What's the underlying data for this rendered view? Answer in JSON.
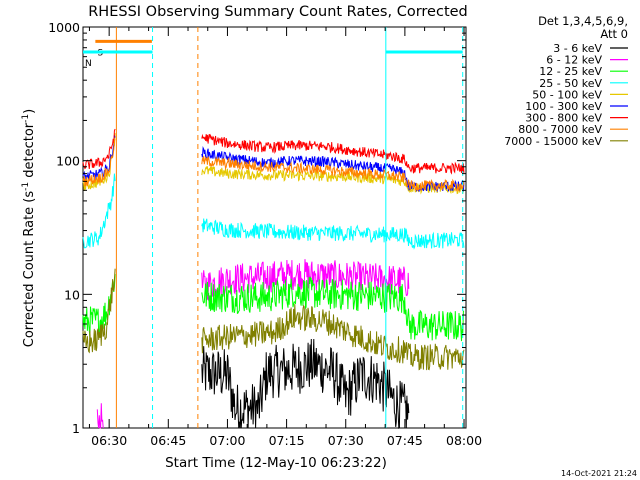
{
  "chart_data": {
    "type": "line",
    "title": "RHESSI Observing Summary Count Rates, Corrected",
    "xlabel": "Start Time (12-May-10 06:23:22)",
    "ylabel_main": "Corrected Count Rate (s",
    "ylabel_sup1": "-1",
    "ylabel_mid": " detector",
    "ylabel_sup2": "-1",
    "ylabel_end": ")",
    "x_scale": "time",
    "y_scale": "log",
    "xlim": [
      "06:23:22",
      "08:00:30"
    ],
    "ylim": [
      1,
      1000
    ],
    "xticks": [
      "06:30",
      "06:45",
      "07:00",
      "07:15",
      "07:30",
      "07:45",
      "08:00"
    ],
    "yticks": [
      "1",
      "10",
      "100",
      "1000"
    ],
    "grid": false,
    "legend": {
      "placement": "right",
      "header_line1": "Det 1,3,4,5,6,9,",
      "header_line2": "Att 0",
      "entries": [
        {
          "label": "3 - 6 keV",
          "color": "#000000"
        },
        {
          "label": "6 - 12 keV",
          "color": "#ff00ff"
        },
        {
          "label": "12 - 25 keV",
          "color": "#00ff00"
        },
        {
          "label": "25 - 50 keV",
          "color": "#00ffff"
        },
        {
          "label": "50 - 100 keV",
          "color": "#e6c800"
        },
        {
          "label": "100 - 300 keV",
          "color": "#0000ff"
        },
        {
          "label": "300 - 800 keV",
          "color": "#ff0000"
        },
        {
          "label": "800 - 7000 keV",
          "color": "#ff8000"
        },
        {
          "label": "7000 - 15000 keV",
          "color": "#808000"
        }
      ]
    },
    "bars": [
      {
        "name": "S",
        "label": "S",
        "color": "#ff8000",
        "x_start": "06:26:30",
        "x_end": "06:40:50",
        "y": 780
      },
      {
        "name": "N",
        "label": "N",
        "color": "#00ffff",
        "x_start": "06:23:22",
        "x_end": "06:41:00",
        "y": 650
      },
      {
        "name": "N2",
        "label": "",
        "color": "#00ffff",
        "x_start": "07:40:10",
        "x_end": "07:59:40",
        "y": 650
      }
    ],
    "vlines": [
      {
        "x": "06:31:50",
        "color": "#ff8000",
        "style": "solid"
      },
      {
        "x": "06:41:00",
        "color": "#00ffff",
        "style": "dashed"
      },
      {
        "x": "06:52:30",
        "color": "#ff8000",
        "style": "dashed"
      },
      {
        "x": "07:40:10",
        "color": "#00ffff",
        "style": "solid"
      },
      {
        "x": "07:59:40",
        "color": "#00ffff",
        "style": "dashed"
      }
    ],
    "series": [
      {
        "name": "3 - 6 keV",
        "color": "#000000",
        "noise": 0.2,
        "segments": [
          [
            [
              "06:53:30",
              2.6
            ],
            [
              "07:00:00",
              2.5
            ],
            [
              "07:02:00",
              1.4
            ],
            [
              "07:08:00",
              1.4
            ],
            [
              "07:10:00",
              2.6
            ],
            [
              "07:15:00",
              2.7
            ],
            [
              "07:22:00",
              3.0
            ],
            [
              "07:27:00",
              2.6
            ],
            [
              "07:30:00",
              1.7
            ],
            [
              "07:34:00",
              2.5
            ],
            [
              "07:38:00",
              2.3
            ],
            [
              "07:43:00",
              1.5
            ],
            [
              "07:46:00",
              1.3
            ]
          ]
        ]
      },
      {
        "name": "6 - 12 keV",
        "color": "#ff00ff",
        "noise": 0.12,
        "segments": [
          [
            [
              "06:27:00",
              1.1
            ],
            [
              "06:28:30",
              1.2
            ]
          ],
          [
            [
              "06:53:30",
              11.5
            ],
            [
              "07:00:00",
              13.0
            ],
            [
              "07:10:00",
              13.5
            ],
            [
              "07:17:00",
              14.2
            ],
            [
              "07:25:00",
              13.8
            ],
            [
              "07:35:00",
              13.2
            ],
            [
              "07:42:00",
              12.8
            ],
            [
              "07:46:00",
              12.3
            ]
          ]
        ]
      },
      {
        "name": "12 - 25 keV",
        "color": "#00ff00",
        "noise": 0.12,
        "segments": [
          [
            [
              "06:23:22",
              6.2
            ],
            [
              "06:27:30",
              6.3
            ],
            [
              "06:29:30",
              7.5
            ],
            [
              "06:30:30",
              10.5
            ],
            [
              "06:31:30",
              13.5
            ]
          ],
          [
            [
              "06:53:30",
              9.8
            ],
            [
              "07:00:00",
              9.5
            ],
            [
              "07:10:00",
              9.5
            ],
            [
              "07:17:00",
              10.5
            ],
            [
              "07:25:00",
              10.0
            ],
            [
              "07:35:00",
              9.8
            ],
            [
              "07:45:00",
              9.4
            ],
            [
              "07:46:00",
              5.8
            ],
            [
              "08:00:00",
              5.8
            ]
          ]
        ]
      },
      {
        "name": "25 - 50 keV",
        "color": "#00ffff",
        "noise": 0.06,
        "segments": [
          [
            [
              "06:23:22",
              25.0
            ],
            [
              "06:27:30",
              26.5
            ],
            [
              "06:30:30",
              50.0
            ],
            [
              "06:31:30",
              75.0
            ]
          ],
          [
            [
              "06:53:30",
              33.0
            ],
            [
              "07:00:00",
              30.5
            ],
            [
              "07:10:00",
              29.5
            ],
            [
              "07:17:00",
              29.0
            ],
            [
              "07:30:00",
              28.5
            ],
            [
              "07:42:00",
              28.0
            ],
            [
              "07:45:00",
              28.0
            ],
            [
              "07:46:00",
              25.0
            ],
            [
              "08:00:00",
              25.5
            ]
          ]
        ]
      },
      {
        "name": "50 - 100 keV",
        "color": "#e6c800",
        "noise": 0.04,
        "segments": [
          [
            [
              "06:23:22",
              64.0
            ],
            [
              "06:28:00",
              70.0
            ],
            [
              "06:30:00",
              80.0
            ],
            [
              "06:31:30",
              150.0
            ]
          ],
          [
            [
              "06:53:30",
              85.0
            ],
            [
              "07:00:00",
              80.0
            ],
            [
              "07:10:00",
              78.0
            ],
            [
              "07:20:00",
              77.0
            ],
            [
              "07:30:00",
              76.0
            ],
            [
              "07:40:00",
              73.0
            ],
            [
              "07:45:00",
              70.0
            ],
            [
              "07:46:00",
              63.0
            ],
            [
              "08:00:00",
              62.0
            ]
          ]
        ]
      },
      {
        "name": "100 - 300 keV",
        "color": "#0000ff",
        "noise": 0.04,
        "segments": [
          [
            [
              "06:23:22",
              75.0
            ],
            [
              "06:28:00",
              80.0
            ],
            [
              "06:30:00",
              90.0
            ],
            [
              "06:31:30",
              150.0
            ]
          ],
          [
            [
              "06:53:30",
              115.0
            ],
            [
              "07:00:00",
              105.0
            ],
            [
              "07:10:00",
              96.0
            ],
            [
              "07:17:00",
              100.0
            ],
            [
              "07:25:00",
              98.0
            ],
            [
              "07:35:00",
              90.0
            ],
            [
              "07:42:00",
              86.0
            ],
            [
              "07:45:00",
              80.0
            ],
            [
              "07:46:00",
              64.0
            ],
            [
              "08:00:00",
              64.0
            ]
          ]
        ]
      },
      {
        "name": "300 - 800 keV",
        "color": "#ff0000",
        "noise": 0.04,
        "segments": [
          [
            [
              "06:23:22",
              92.0
            ],
            [
              "06:28:00",
              97.0
            ],
            [
              "06:30:00",
              110.0
            ],
            [
              "06:31:30",
              160.0
            ]
          ],
          [
            [
              "06:53:30",
              150.0
            ],
            [
              "07:00:00",
              135.0
            ],
            [
              "07:10:00",
              125.0
            ],
            [
              "07:17:00",
              130.0
            ],
            [
              "07:25:00",
              128.0
            ],
            [
              "07:35:00",
              115.0
            ],
            [
              "07:42:00",
              108.0
            ],
            [
              "07:45:00",
              102.0
            ],
            [
              "07:46:00",
              88.0
            ],
            [
              "08:00:00",
              88.0
            ]
          ]
        ]
      },
      {
        "name": "800 - 7000 keV",
        "color": "#ff8000",
        "noise": 0.04,
        "segments": [
          [
            [
              "06:23:22",
              70.0
            ],
            [
              "06:28:00",
              75.0
            ],
            [
              "06:30:00",
              85.0
            ],
            [
              "06:31:30",
              140.0
            ]
          ],
          [
            [
              "06:53:30",
              100.0
            ],
            [
              "07:00:00",
              95.0
            ],
            [
              "07:10:00",
              90.0
            ],
            [
              "07:17:00",
              88.0
            ],
            [
              "07:25:00",
              85.0
            ],
            [
              "07:35:00",
              80.0
            ],
            [
              "07:42:00",
              77.0
            ],
            [
              "07:45:00",
              74.0
            ],
            [
              "07:46:00",
              65.0
            ],
            [
              "08:00:00",
              65.0
            ]
          ]
        ]
      },
      {
        "name": "7000 - 15000 keV",
        "color": "#808000",
        "noise": 0.1,
        "segments": [
          [
            [
              "06:23:22",
              4.3
            ],
            [
              "06:27:00",
              4.5
            ],
            [
              "06:29:30",
              6.0
            ],
            [
              "06:30:30",
              9.5
            ],
            [
              "06:31:30",
              13.5
            ]
          ],
          [
            [
              "06:53:30",
              4.5
            ],
            [
              "07:00:00",
              4.8
            ],
            [
              "07:07:00",
              5.0
            ],
            [
              "07:12:00",
              5.2
            ],
            [
              "07:17:00",
              6.8
            ],
            [
              "07:25:00",
              6.3
            ],
            [
              "07:32:00",
              5.0
            ],
            [
              "07:40:00",
              4.0
            ],
            [
              "07:45:00",
              3.8
            ],
            [
              "07:46:00",
              3.4
            ],
            [
              "08:00:00",
              3.4
            ]
          ]
        ]
      }
    ]
  },
  "footer": {
    "timestamp": "14-Oct-2021 21:24"
  }
}
